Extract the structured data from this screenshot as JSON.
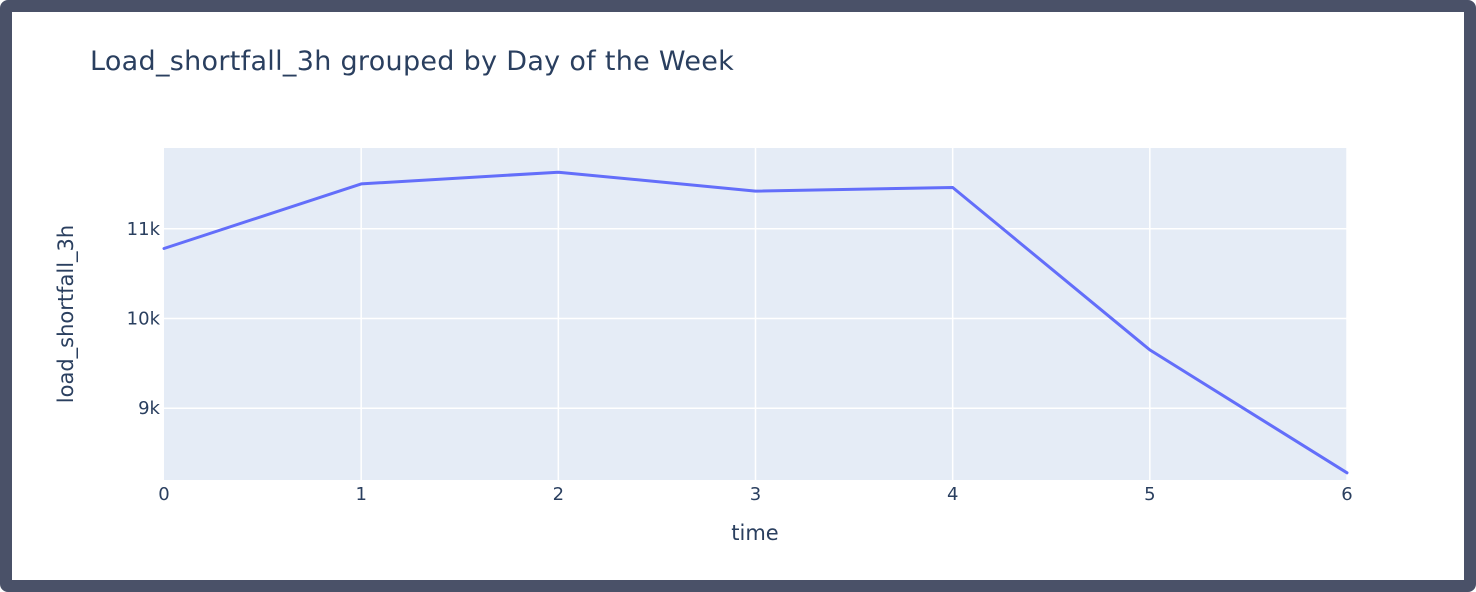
{
  "chart_data": {
    "type": "line",
    "title": "Load_shortfall_3h grouped by Day of the Week",
    "xlabel": "time",
    "ylabel": "load_shortfall_3h",
    "x": [
      0,
      1,
      2,
      3,
      4,
      5,
      6
    ],
    "series": [
      {
        "values": [
          10780,
          11500,
          11630,
          11420,
          11460,
          9650,
          8280
        ]
      }
    ],
    "xlim": [
      0,
      6
    ],
    "ylim": [
      8200,
      11900
    ],
    "x_ticks": [
      {
        "value": 0,
        "label": "0"
      },
      {
        "value": 1,
        "label": "1"
      },
      {
        "value": 2,
        "label": "2"
      },
      {
        "value": 3,
        "label": "3"
      },
      {
        "value": 4,
        "label": "4"
      },
      {
        "value": 5,
        "label": "5"
      },
      {
        "value": 6,
        "label": "6"
      }
    ],
    "y_ticks": [
      {
        "value": 9000,
        "label": "9k"
      },
      {
        "value": 10000,
        "label": "10k"
      },
      {
        "value": 11000,
        "label": "11k"
      }
    ],
    "grid": true,
    "colors": {
      "line": "#636efa",
      "plot_bg": "#e5ecf6",
      "grid": "#ffffff",
      "text": "#2a3f5f",
      "frame": "#4a5168"
    }
  }
}
